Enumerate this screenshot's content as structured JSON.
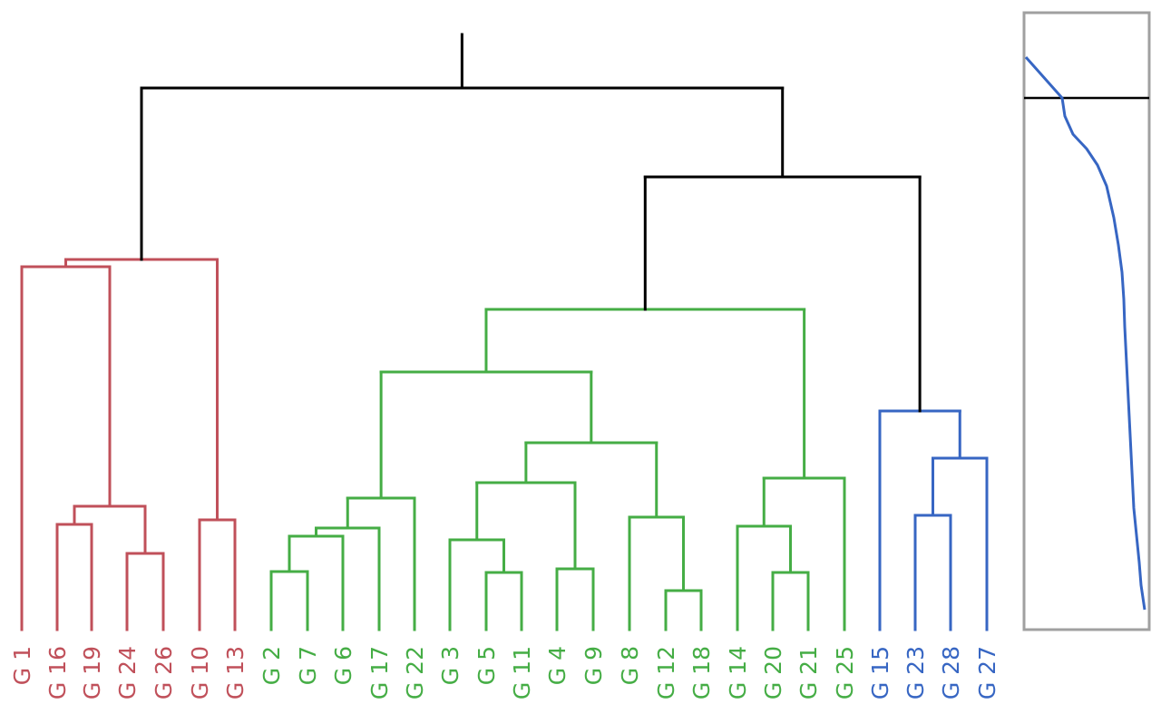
{
  "colors": {
    "red": "#c0505a",
    "green": "#45ad45",
    "blue": "#3766c3",
    "black": "#000000",
    "frame": "#a0a0a0"
  },
  "dendrogram": {
    "leaves": [
      {
        "label": "G 1",
        "cluster": "red"
      },
      {
        "label": "G 16",
        "cluster": "red"
      },
      {
        "label": "G 19",
        "cluster": "red"
      },
      {
        "label": "G 24",
        "cluster": "red"
      },
      {
        "label": "G 26",
        "cluster": "red"
      },
      {
        "label": "G 10",
        "cluster": "red"
      },
      {
        "label": "G 13",
        "cluster": "red"
      },
      {
        "label": "G 2",
        "cluster": "green"
      },
      {
        "label": "G 7",
        "cluster": "green"
      },
      {
        "label": "G 6",
        "cluster": "green"
      },
      {
        "label": "G 17",
        "cluster": "green"
      },
      {
        "label": "G 22",
        "cluster": "green"
      },
      {
        "label": "G 3",
        "cluster": "green"
      },
      {
        "label": "G 5",
        "cluster": "green"
      },
      {
        "label": "G 11",
        "cluster": "green"
      },
      {
        "label": "G 4",
        "cluster": "green"
      },
      {
        "label": "G 9",
        "cluster": "green"
      },
      {
        "label": "G 8",
        "cluster": "green"
      },
      {
        "label": "G 12",
        "cluster": "green"
      },
      {
        "label": "G 18",
        "cluster": "green"
      },
      {
        "label": "G 14",
        "cluster": "green"
      },
      {
        "label": "G 20",
        "cluster": "green"
      },
      {
        "label": "G 21",
        "cluster": "green"
      },
      {
        "label": "G 25",
        "cluster": "green"
      },
      {
        "label": "G 15",
        "cluster": "blue"
      },
      {
        "label": "G 23",
        "cluster": "blue"
      },
      {
        "label": "G 28",
        "cluster": "blue"
      },
      {
        "label": "G 27",
        "cluster": "blue"
      }
    ]
  }
}
